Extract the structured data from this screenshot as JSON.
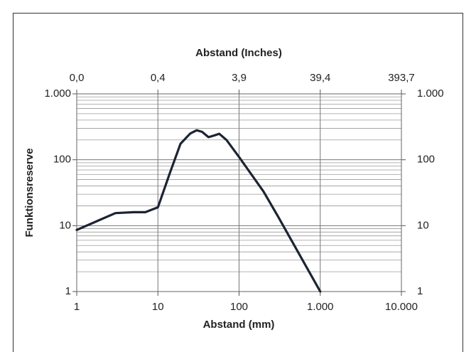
{
  "chart_data": {
    "type": "line",
    "x_title": "Abstand (mm)",
    "x2_title": "Abstand (Inches)",
    "y_title": "Funktionsreserve",
    "x": [
      1,
      2,
      3,
      5,
      7,
      10,
      14,
      19,
      25,
      30,
      35,
      42,
      50,
      57,
      70,
      100,
      200,
      300,
      1000
    ],
    "series": [
      {
        "color": "#1c2433",
        "values": [
          8.6,
          12.5,
          15.5,
          16,
          16,
          19,
          62,
          175,
          250,
          280,
          265,
          220,
          235,
          248,
          200,
          110,
          33,
          14,
          1
        ]
      }
    ],
    "xlim": [
      1,
      10000
    ],
    "xticks": [
      1,
      10,
      100,
      {
        "value": 1000,
        "label": "1.000"
      },
      {
        "value": 10000,
        "label": "10.000"
      }
    ],
    "x2lim": [
      0.03937,
      393.7
    ],
    "x2ticks": [
      {
        "value": 0.03937,
        "label": "0,0"
      },
      {
        "value": 0.3937,
        "label": "0,4"
      },
      {
        "value": 3.937,
        "label": "3,9"
      },
      {
        "value": 39.37,
        "label": "39,4"
      },
      {
        "value": 393.7,
        "label": "393,7"
      }
    ],
    "ylim": [
      1,
      1000
    ],
    "yticks": [
      1,
      10,
      100,
      {
        "value": 1000,
        "label": "1.000"
      }
    ],
    "yminor": [
      2,
      3,
      4,
      5,
      6,
      7,
      8,
      9,
      20,
      30,
      40,
      50,
      60,
      70,
      80,
      90,
      200,
      300,
      400,
      500,
      600,
      700,
      800,
      900
    ],
    "xlog": true,
    "ylog": true,
    "grid": true
  }
}
